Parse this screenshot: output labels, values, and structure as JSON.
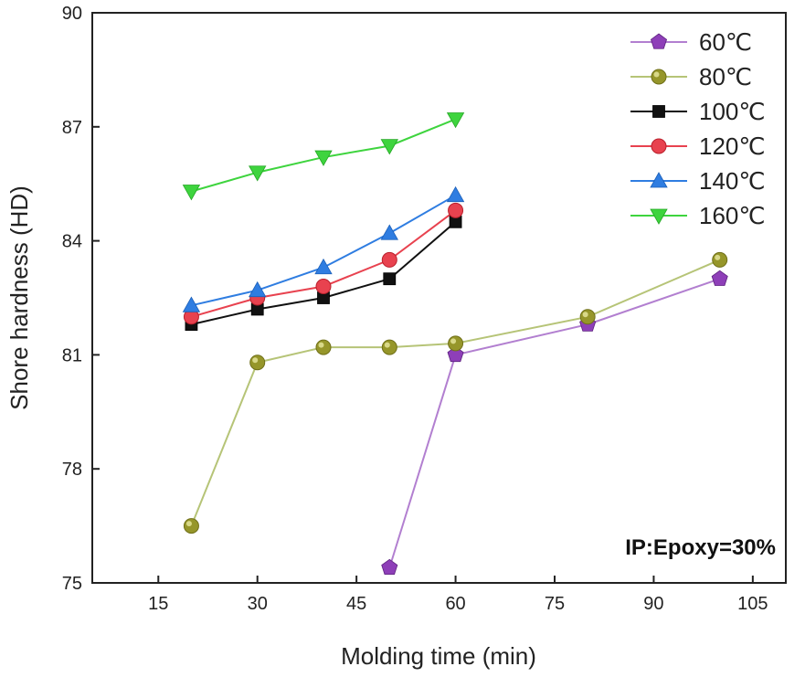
{
  "chart_data": {
    "type": "line",
    "xlabel": "Molding time (min)",
    "ylabel": "Shore hardness (HD)",
    "xlim": [
      5,
      110
    ],
    "ylim": [
      75,
      90
    ],
    "xticks": [
      15,
      30,
      45,
      60,
      75,
      90,
      105
    ],
    "yticks": [
      75,
      78,
      81,
      84,
      87,
      90
    ],
    "grid": false,
    "legend_position": "top-right",
    "annotation": "IP:Epoxy=30%",
    "series": [
      {
        "name": "60℃",
        "color": "#8e3fb8",
        "line_color": "#b27fd0",
        "marker": "pentagon",
        "x": [
          50,
          60,
          80,
          100
        ],
        "y": [
          75.4,
          81.0,
          81.8,
          83.0
        ]
      },
      {
        "name": "80℃",
        "color": "#9a9a22",
        "line_color": "#b6c477",
        "marker": "sphere",
        "x": [
          20,
          30,
          40,
          50,
          60,
          80,
          100
        ],
        "y": [
          76.5,
          80.8,
          81.2,
          81.2,
          81.3,
          82.0,
          83.5
        ]
      },
      {
        "name": "100℃",
        "color": "#111111",
        "line_color": "#111111",
        "marker": "square",
        "x": [
          20,
          30,
          40,
          50,
          60
        ],
        "y": [
          81.8,
          82.2,
          82.5,
          83.0,
          84.5
        ]
      },
      {
        "name": "120℃",
        "color": "#e8424f",
        "line_color": "#e8424f",
        "marker": "circle",
        "x": [
          20,
          30,
          40,
          50,
          60
        ],
        "y": [
          82.0,
          82.5,
          82.8,
          83.5,
          84.8
        ]
      },
      {
        "name": "140℃",
        "color": "#2f7de1",
        "line_color": "#2f7de1",
        "marker": "triangle-up",
        "x": [
          20,
          30,
          40,
          50,
          60
        ],
        "y": [
          82.3,
          82.7,
          83.3,
          84.2,
          85.2
        ]
      },
      {
        "name": "160℃",
        "color": "#3ed43e",
        "line_color": "#3ed43e",
        "marker": "triangle-down",
        "x": [
          20,
          30,
          40,
          50,
          60
        ],
        "y": [
          85.3,
          85.8,
          86.2,
          86.5,
          87.2
        ]
      }
    ]
  }
}
